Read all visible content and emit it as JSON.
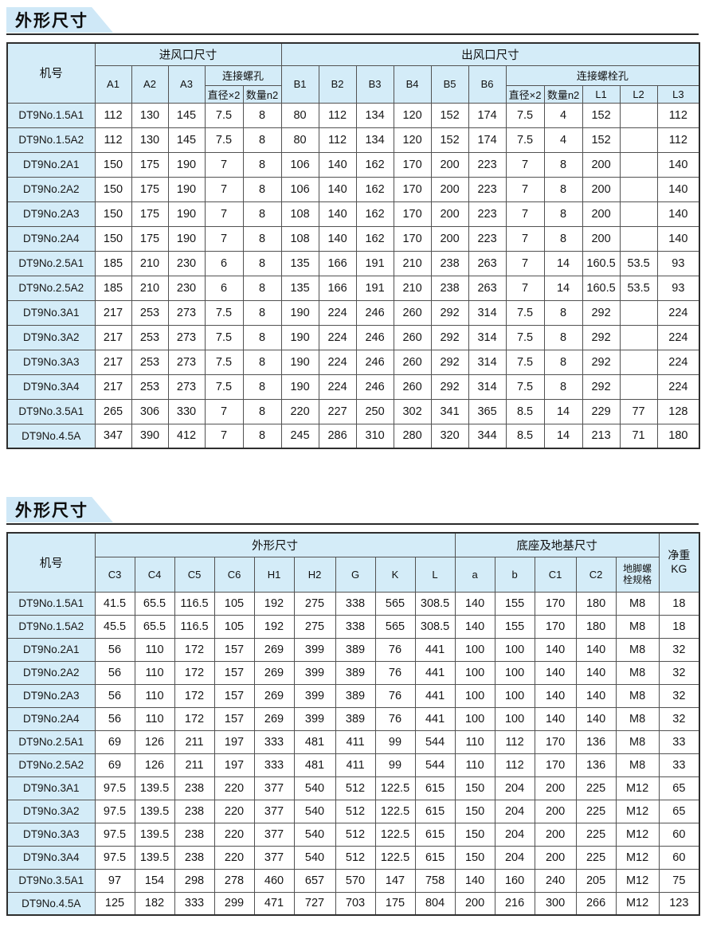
{
  "colors": {
    "light_blue": "#d4ecf8",
    "title_blue": "#cfe8f7",
    "inner_border": "#525252",
    "outer_border": "#2e2e2e",
    "rule": "#2a2a2a",
    "text": "#161616"
  },
  "section1": {
    "title": "外形尺寸",
    "header": {
      "model": "机号",
      "inlet_group": "进风口尺寸",
      "outlet_group": "出风口尺寸",
      "a1": "A1",
      "a2": "A2",
      "a3": "A3",
      "screw_group": "连接螺孔",
      "bolt_group": "连接螺栓孔",
      "diameter": "直径×2",
      "quantity": "数量n2",
      "b1": "B1",
      "b2": "B2",
      "b3": "B3",
      "b4": "B4",
      "b5": "B5",
      "b6": "B6",
      "l1": "L1",
      "l2": "L2",
      "l3": "L3"
    },
    "rows": [
      [
        "DT9No.1.5A1",
        "112",
        "130",
        "145",
        "7.5",
        "8",
        "80",
        "112",
        "134",
        "120",
        "152",
        "174",
        "7.5",
        "4",
        "152",
        "",
        "112"
      ],
      [
        "DT9No.1.5A2",
        "112",
        "130",
        "145",
        "7.5",
        "8",
        "80",
        "112",
        "134",
        "120",
        "152",
        "174",
        "7.5",
        "4",
        "152",
        "",
        "112"
      ],
      [
        "DT9No.2A1",
        "150",
        "175",
        "190",
        "7",
        "8",
        "106",
        "140",
        "162",
        "170",
        "200",
        "223",
        "7",
        "8",
        "200",
        "",
        "140"
      ],
      [
        "DT9No.2A2",
        "150",
        "175",
        "190",
        "7",
        "8",
        "106",
        "140",
        "162",
        "170",
        "200",
        "223",
        "7",
        "8",
        "200",
        "",
        "140"
      ],
      [
        "DT9No.2A3",
        "150",
        "175",
        "190",
        "7",
        "8",
        "108",
        "140",
        "162",
        "170",
        "200",
        "223",
        "7",
        "8",
        "200",
        "",
        "140"
      ],
      [
        "DT9No.2A4",
        "150",
        "175",
        "190",
        "7",
        "8",
        "108",
        "140",
        "162",
        "170",
        "200",
        "223",
        "7",
        "8",
        "200",
        "",
        "140"
      ],
      [
        "DT9No.2.5A1",
        "185",
        "210",
        "230",
        "6",
        "8",
        "135",
        "166",
        "191",
        "210",
        "238",
        "263",
        "7",
        "14",
        "160.5",
        "53.5",
        "93"
      ],
      [
        "DT9No.2.5A2",
        "185",
        "210",
        "230",
        "6",
        "8",
        "135",
        "166",
        "191",
        "210",
        "238",
        "263",
        "7",
        "14",
        "160.5",
        "53.5",
        "93"
      ],
      [
        "DT9No.3A1",
        "217",
        "253",
        "273",
        "7.5",
        "8",
        "190",
        "224",
        "246",
        "260",
        "292",
        "314",
        "7.5",
        "8",
        "292",
        "",
        "224"
      ],
      [
        "DT9No.3A2",
        "217",
        "253",
        "273",
        "7.5",
        "8",
        "190",
        "224",
        "246",
        "260",
        "292",
        "314",
        "7.5",
        "8",
        "292",
        "",
        "224"
      ],
      [
        "DT9No.3A3",
        "217",
        "253",
        "273",
        "7.5",
        "8",
        "190",
        "224",
        "246",
        "260",
        "292",
        "314",
        "7.5",
        "8",
        "292",
        "",
        "224"
      ],
      [
        "DT9No.3A4",
        "217",
        "253",
        "273",
        "7.5",
        "8",
        "190",
        "224",
        "246",
        "260",
        "292",
        "314",
        "7.5",
        "8",
        "292",
        "",
        "224"
      ],
      [
        "DT9No.3.5A1",
        "265",
        "306",
        "330",
        "7",
        "8",
        "220",
        "227",
        "250",
        "302",
        "341",
        "365",
        "8.5",
        "14",
        "229",
        "77",
        "128"
      ],
      [
        "DT9No.4.5A",
        "347",
        "390",
        "412",
        "7",
        "8",
        "245",
        "286",
        "310",
        "280",
        "320",
        "344",
        "8.5",
        "14",
        "213",
        "71",
        "180"
      ]
    ]
  },
  "section2": {
    "title": "外形尺寸",
    "header": {
      "model": "机号",
      "dims_group": "外形尺寸",
      "base_group": "底座及地基尺寸",
      "c3": "C3",
      "c4": "C4",
      "c5": "C5",
      "c6": "C6",
      "h1": "H1",
      "h2": "H2",
      "g": "G",
      "k": "K",
      "l": "L",
      "a": "a",
      "b": "b",
      "c1": "C1",
      "c2": "C2",
      "anchor_bolt": "地脚螺栓规格",
      "net_weight": "净重",
      "net_weight_unit": "KG"
    },
    "rows": [
      [
        "DT9No.1.5A1",
        "41.5",
        "65.5",
        "116.5",
        "105",
        "192",
        "275",
        "338",
        "565",
        "308.5",
        "140",
        "155",
        "170",
        "180",
        "M8",
        "18"
      ],
      [
        "DT9No.1.5A2",
        "45.5",
        "65.5",
        "116.5",
        "105",
        "192",
        "275",
        "338",
        "565",
        "308.5",
        "140",
        "155",
        "170",
        "180",
        "M8",
        "18"
      ],
      [
        "DT9No.2A1",
        "56",
        "110",
        "172",
        "157",
        "269",
        "399",
        "389",
        "76",
        "441",
        "100",
        "100",
        "140",
        "140",
        "M8",
        "32"
      ],
      [
        "DT9No.2A2",
        "56",
        "110",
        "172",
        "157",
        "269",
        "399",
        "389",
        "76",
        "441",
        "100",
        "100",
        "140",
        "140",
        "M8",
        "32"
      ],
      [
        "DT9No.2A3",
        "56",
        "110",
        "172",
        "157",
        "269",
        "399",
        "389",
        "76",
        "441",
        "100",
        "100",
        "140",
        "140",
        "M8",
        "32"
      ],
      [
        "DT9No.2A4",
        "56",
        "110",
        "172",
        "157",
        "269",
        "399",
        "389",
        "76",
        "441",
        "100",
        "100",
        "140",
        "140",
        "M8",
        "32"
      ],
      [
        "DT9No.2.5A1",
        "69",
        "126",
        "211",
        "197",
        "333",
        "481",
        "411",
        "99",
        "544",
        "110",
        "112",
        "170",
        "136",
        "M8",
        "33"
      ],
      [
        "DT9No.2.5A2",
        "69",
        "126",
        "211",
        "197",
        "333",
        "481",
        "411",
        "99",
        "544",
        "110",
        "112",
        "170",
        "136",
        "M8",
        "33"
      ],
      [
        "DT9No.3A1",
        "97.5",
        "139.5",
        "238",
        "220",
        "377",
        "540",
        "512",
        "122.5",
        "615",
        "150",
        "204",
        "200",
        "225",
        "M12",
        "65"
      ],
      [
        "DT9No.3A2",
        "97.5",
        "139.5",
        "238",
        "220",
        "377",
        "540",
        "512",
        "122.5",
        "615",
        "150",
        "204",
        "200",
        "225",
        "M12",
        "65"
      ],
      [
        "DT9No.3A3",
        "97.5",
        "139.5",
        "238",
        "220",
        "377",
        "540",
        "512",
        "122.5",
        "615",
        "150",
        "204",
        "200",
        "225",
        "M12",
        "60"
      ],
      [
        "DT9No.3A4",
        "97.5",
        "139.5",
        "238",
        "220",
        "377",
        "540",
        "512",
        "122.5",
        "615",
        "150",
        "204",
        "200",
        "225",
        "M12",
        "60"
      ],
      [
        "DT9No.3.5A1",
        "97",
        "154",
        "298",
        "278",
        "460",
        "657",
        "570",
        "147",
        "758",
        "140",
        "160",
        "240",
        "205",
        "M12",
        "75"
      ],
      [
        "DT9No.4.5A",
        "125",
        "182",
        "333",
        "299",
        "471",
        "727",
        "703",
        "175",
        "804",
        "200",
        "216",
        "300",
        "266",
        "M12",
        "123"
      ]
    ]
  }
}
